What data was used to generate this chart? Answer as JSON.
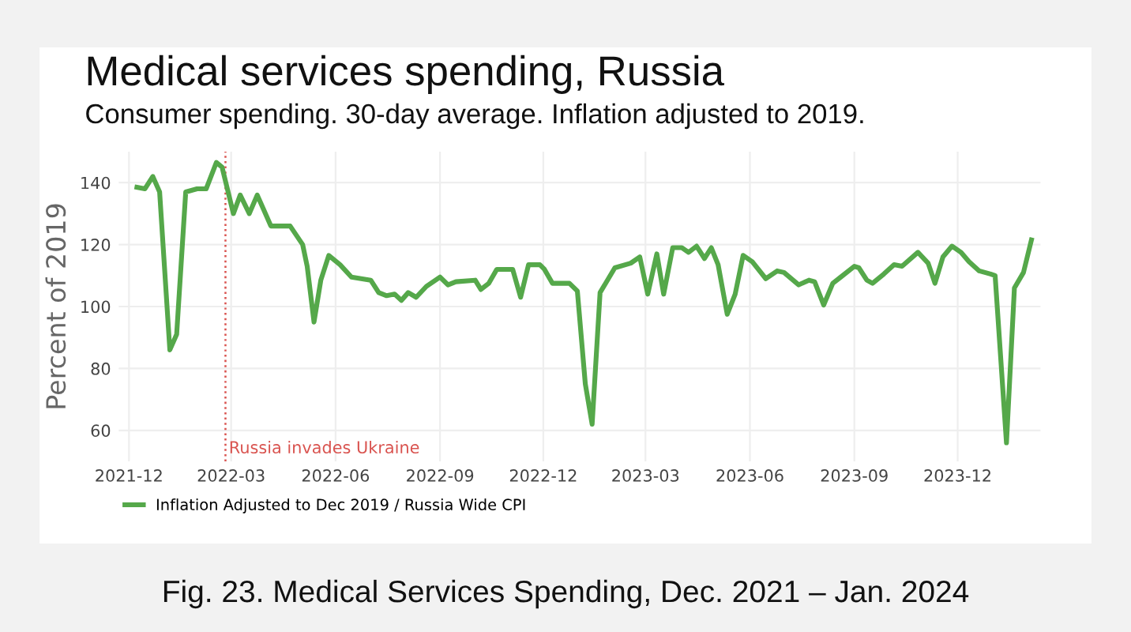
{
  "chart_data": {
    "type": "line",
    "title": "Medical services spending, Russia",
    "subtitle": "Consumer spending. 30-day average. Inflation adjusted to 2019.",
    "ylabel": "Percent of 2019",
    "x": [
      "2021-12-08",
      "2021-12-15",
      "2021-12-22",
      "2021-12-28",
      "2022-01-06",
      "2022-01-12",
      "2022-01-20",
      "2022-01-30",
      "2022-02-07",
      "2022-02-16",
      "2022-02-21",
      "2022-03-03",
      "2022-03-09",
      "2022-03-17",
      "2022-03-24",
      "2022-04-05",
      "2022-04-22",
      "2022-05-03",
      "2022-05-07",
      "2022-05-13",
      "2022-05-19",
      "2022-05-26",
      "2022-06-05",
      "2022-06-15",
      "2022-07-02",
      "2022-07-09",
      "2022-07-16",
      "2022-07-23",
      "2022-07-29",
      "2022-08-04",
      "2022-08-11",
      "2022-08-20",
      "2022-09-01",
      "2022-09-08",
      "2022-09-15",
      "2022-10-02",
      "2022-10-07",
      "2022-10-14",
      "2022-10-21",
      "2022-11-04",
      "2022-11-11",
      "2022-11-18",
      "2022-11-28",
      "2022-12-02",
      "2022-12-09",
      "2022-12-24",
      "2022-12-31",
      "2023-01-07",
      "2023-01-13",
      "2023-01-20",
      "2023-02-02",
      "2023-02-16",
      "2023-02-24",
      "2023-03-03",
      "2023-03-11",
      "2023-03-17",
      "2023-03-25",
      "2023-04-02",
      "2023-04-08",
      "2023-04-15",
      "2023-04-22",
      "2023-04-28",
      "2023-05-04",
      "2023-05-12",
      "2023-05-19",
      "2023-05-26",
      "2023-06-03",
      "2023-06-15",
      "2023-06-25",
      "2023-07-01",
      "2023-07-14",
      "2023-07-23",
      "2023-07-28",
      "2023-08-05",
      "2023-08-13",
      "2023-08-20",
      "2023-09-01",
      "2023-09-05",
      "2023-09-12",
      "2023-09-17",
      "2023-09-27",
      "2023-10-06",
      "2023-10-13",
      "2023-10-27",
      "2023-11-05",
      "2023-11-11",
      "2023-11-18",
      "2023-11-26",
      "2023-12-04",
      "2023-12-11",
      "2023-12-20",
      "2023-12-30",
      "2024-01-03",
      "2024-01-13",
      "2024-01-20",
      "2024-01-28",
      "2024-02-04"
    ],
    "series": [
      {
        "name": "Inflation Adjusted to Dec 2019 / Russia Wide CPI",
        "color": "#55a84a",
        "values": [
          138.5,
          138,
          142,
          137,
          86,
          91,
          137,
          138,
          138,
          146.5,
          145,
          130,
          136,
          130,
          136,
          126,
          126,
          120,
          113,
          95,
          108.5,
          116.5,
          113.5,
          109.5,
          108.5,
          104.5,
          103.5,
          104,
          102,
          104.5,
          103,
          106.5,
          109.5,
          107,
          108,
          108.5,
          105.5,
          107.5,
          112,
          112,
          103,
          113.5,
          113.5,
          112,
          107.5,
          107.5,
          105,
          75,
          62,
          104.5,
          112.5,
          114,
          116,
          104,
          117,
          104,
          119,
          119,
          117.5,
          119.5,
          115.5,
          119,
          113.5,
          97.5,
          104,
          116.5,
          114.5,
          109,
          111.5,
          111,
          107,
          108.5,
          108,
          100.5,
          107.5,
          109.5,
          113,
          112.5,
          108.5,
          107.5,
          110.5,
          113.5,
          113,
          117.5,
          114,
          107.5,
          116,
          119.5,
          117.5,
          114.5,
          111.5,
          110.5,
          110,
          56,
          106,
          111,
          121.5
        ]
      }
    ],
    "xlim": [
      "2021-11-22",
      "2024-02-12"
    ],
    "ylim": [
      50,
      150
    ],
    "xticks": [
      {
        "value": "2021-12-01",
        "label": "2021-12"
      },
      {
        "value": "2022-03-01",
        "label": "2022-03"
      },
      {
        "value": "2022-06-01",
        "label": "2022-06"
      },
      {
        "value": "2022-09-01",
        "label": "2022-09"
      },
      {
        "value": "2022-12-01",
        "label": "2022-12"
      },
      {
        "value": "2023-03-01",
        "label": "2023-03"
      },
      {
        "value": "2023-06-01",
        "label": "2023-06"
      },
      {
        "value": "2023-09-01",
        "label": "2023-09"
      },
      {
        "value": "2023-12-01",
        "label": "2023-12"
      }
    ],
    "yticks": [
      60,
      80,
      100,
      120,
      140
    ],
    "ref_lines": [
      {
        "axis": "x",
        "value": "2022-02-24",
        "label": "Russia invades Ukraine",
        "color": "#d9534f",
        "line_style": "dotted"
      }
    ],
    "grid": true,
    "legend": "bottom left",
    "marker": "none",
    "line_style": "solid",
    "annotations": [
      "Fig. 23. Medical Services Spending, Dec. 2021 – Jan. 2024"
    ]
  }
}
